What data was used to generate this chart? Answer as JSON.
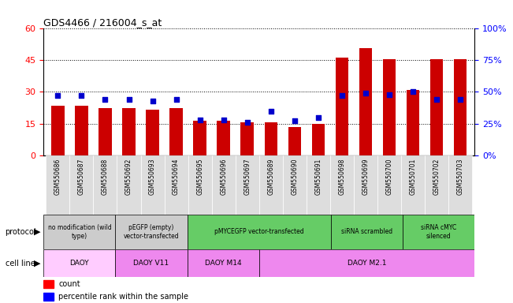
{
  "title": "GDS4466 / 216004_s_at",
  "samples": [
    "GSM550686",
    "GSM550687",
    "GSM550688",
    "GSM550692",
    "GSM550693",
    "GSM550694",
    "GSM550695",
    "GSM550696",
    "GSM550697",
    "GSM550689",
    "GSM550690",
    "GSM550691",
    "GSM550698",
    "GSM550699",
    "GSM550700",
    "GSM550701",
    "GSM550702",
    "GSM550703"
  ],
  "counts": [
    23.5,
    23.5,
    22.5,
    22.5,
    21.5,
    22.5,
    16.5,
    16.5,
    15.5,
    15.5,
    13.5,
    15.0,
    46.0,
    50.5,
    45.5,
    31.0,
    45.5,
    45.5
  ],
  "percentiles": [
    47,
    47,
    44,
    44,
    43,
    44,
    28,
    28,
    26,
    35,
    27,
    30,
    47,
    49,
    48,
    50,
    44,
    44
  ],
  "ylim_left": [
    0,
    60
  ],
  "ylim_right": [
    0,
    100
  ],
  "yticks_left": [
    0,
    15,
    30,
    45,
    60
  ],
  "yticks_right": [
    0,
    25,
    50,
    75,
    100
  ],
  "bar_color": "#cc0000",
  "dot_color": "#0000cc",
  "bg_xtick_color": "#cccccc",
  "protocol_groups": [
    {
      "label": "no modification (wild\ntype)",
      "start": 0,
      "end": 3,
      "color": "#cccccc"
    },
    {
      "label": "pEGFP (empty)\nvector-transfected",
      "start": 3,
      "end": 6,
      "color": "#cccccc"
    },
    {
      "label": "pMYCEGFP vector-transfected",
      "start": 6,
      "end": 12,
      "color": "#66cc66"
    },
    {
      "label": "siRNA scrambled",
      "start": 12,
      "end": 15,
      "color": "#66cc66"
    },
    {
      "label": "siRNA cMYC\nsilenced",
      "start": 15,
      "end": 18,
      "color": "#66cc66"
    }
  ],
  "cellline_groups": [
    {
      "label": "DAOY",
      "start": 0,
      "end": 3,
      "color": "#ffccff"
    },
    {
      "label": "DAOY V11",
      "start": 3,
      "end": 6,
      "color": "#ee88ee"
    },
    {
      "label": "DAOY M14",
      "start": 6,
      "end": 9,
      "color": "#ee88ee"
    },
    {
      "label": "DAOY M2.1",
      "start": 9,
      "end": 18,
      "color": "#ee88ee"
    }
  ],
  "legend_labels": [
    "count",
    "percentile rank within the sample"
  ]
}
